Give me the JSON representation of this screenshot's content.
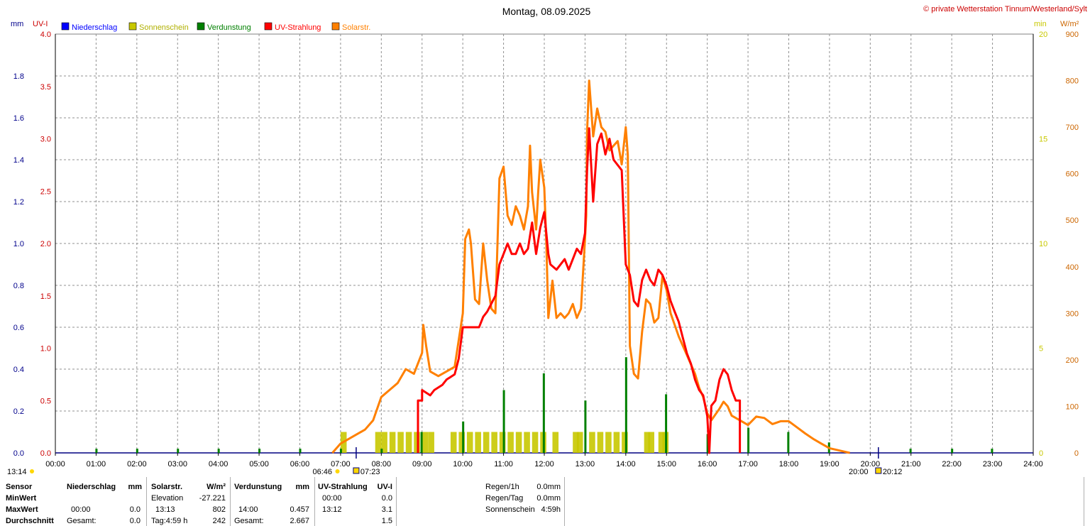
{
  "title": "Montag, 08.09.2025",
  "copyright": "© private Wetterstation Tinnum/Westerland/Sylt",
  "units": {
    "left1": "mm",
    "left2": "UV-I",
    "right1": "min",
    "right2": "W/m²"
  },
  "legend": [
    {
      "label": "Niederschlag",
      "color": "#0000ff"
    },
    {
      "label": "Sonnenschein",
      "color": "#c8c800"
    },
    {
      "label": "Verdunstung",
      "color": "#008000"
    },
    {
      "label": "UV-Strahlung",
      "color": "#ff0000"
    },
    {
      "label": "Solarstr.",
      "color": "#ff8000"
    }
  ],
  "colors": {
    "axis_mm": "#00008b",
    "axis_uv": "#cc0000",
    "axis_min": "#c8c800",
    "axis_wm2": "#cc6600",
    "grid": "#808080"
  },
  "sun": {
    "morning_twilight": "06:46",
    "sunrise": "07:23",
    "evening_twilight_left": "20:00",
    "sunset": "20:12",
    "current_time": "13:14"
  },
  "chart_data": {
    "type": "line",
    "x_label_ticks": [
      "00:00",
      "01:00",
      "02:00",
      "03:00",
      "04:00",
      "05:00",
      "06:00",
      "07:00",
      "08:00",
      "09:00",
      "10:00",
      "11:00",
      "12:00",
      "13:00",
      "14:00",
      "15:00",
      "16:00",
      "17:00",
      "18:00",
      "19:00",
      "20:00",
      "21:00",
      "22:00",
      "23:00",
      "24:00"
    ],
    "axes": {
      "mm": {
        "range": [
          0,
          2.0
        ],
        "ticks": [
          "0.0",
          "0.2",
          "0.4",
          "0.6",
          "0.8",
          "1.0",
          "1.2",
          "1.4",
          "1.6",
          "1.8"
        ]
      },
      "uv": {
        "range": [
          0,
          4.0
        ],
        "ticks": [
          "0.0",
          "0.5",
          "1.0",
          "1.5",
          "2.0",
          "2.5",
          "3.0",
          "3.5",
          "4.0"
        ]
      },
      "min": {
        "range": [
          0,
          20
        ],
        "ticks": [
          "0",
          "5",
          "10",
          "15",
          "20"
        ]
      },
      "wm2": {
        "range": [
          0,
          900
        ],
        "ticks": [
          "0",
          "100",
          "200",
          "300",
          "400",
          "500",
          "600",
          "700",
          "800",
          "900"
        ]
      }
    },
    "series": [
      {
        "name": "Solarstr.",
        "axis": "wm2",
        "color": "#ff8000",
        "points": [
          [
            6.8,
            0
          ],
          [
            7.0,
            20
          ],
          [
            7.3,
            35
          ],
          [
            7.6,
            50
          ],
          [
            7.8,
            70
          ],
          [
            8.0,
            120
          ],
          [
            8.2,
            135
          ],
          [
            8.4,
            150
          ],
          [
            8.6,
            180
          ],
          [
            8.8,
            170
          ],
          [
            9.0,
            215
          ],
          [
            9.03,
            275
          ],
          [
            9.1,
            230
          ],
          [
            9.2,
            175
          ],
          [
            9.4,
            165
          ],
          [
            9.6,
            175
          ],
          [
            9.8,
            185
          ],
          [
            10.0,
            300
          ],
          [
            10.06,
            460
          ],
          [
            10.15,
            480
          ],
          [
            10.2,
            450
          ],
          [
            10.3,
            330
          ],
          [
            10.4,
            320
          ],
          [
            10.5,
            450
          ],
          [
            10.6,
            370
          ],
          [
            10.7,
            310
          ],
          [
            10.8,
            300
          ],
          [
            10.9,
            590
          ],
          [
            11.0,
            615
          ],
          [
            11.1,
            510
          ],
          [
            11.2,
            490
          ],
          [
            11.3,
            530
          ],
          [
            11.4,
            510
          ],
          [
            11.5,
            480
          ],
          [
            11.6,
            530
          ],
          [
            11.65,
            660
          ],
          [
            11.7,
            560
          ],
          [
            11.8,
            480
          ],
          [
            11.85,
            560
          ],
          [
            11.9,
            630
          ],
          [
            12.0,
            570
          ],
          [
            12.05,
            450
          ],
          [
            12.1,
            290
          ],
          [
            12.2,
            370
          ],
          [
            12.3,
            290
          ],
          [
            12.4,
            300
          ],
          [
            12.5,
            290
          ],
          [
            12.6,
            300
          ],
          [
            12.7,
            320
          ],
          [
            12.8,
            290
          ],
          [
            12.9,
            310
          ],
          [
            13.0,
            460
          ],
          [
            13.03,
            510
          ],
          [
            13.05,
            690
          ],
          [
            13.1,
            800
          ],
          [
            13.2,
            680
          ],
          [
            13.3,
            740
          ],
          [
            13.4,
            700
          ],
          [
            13.5,
            690
          ],
          [
            13.6,
            650
          ],
          [
            13.7,
            660
          ],
          [
            13.8,
            670
          ],
          [
            13.9,
            620
          ],
          [
            14.0,
            700
          ],
          [
            14.05,
            640
          ],
          [
            14.1,
            230
          ],
          [
            14.2,
            170
          ],
          [
            14.3,
            160
          ],
          [
            14.4,
            260
          ],
          [
            14.5,
            330
          ],
          [
            14.6,
            320
          ],
          [
            14.7,
            280
          ],
          [
            14.8,
            290
          ],
          [
            14.9,
            380
          ],
          [
            15.0,
            350
          ],
          [
            15.1,
            300
          ],
          [
            15.3,
            250
          ],
          [
            15.5,
            210
          ],
          [
            15.7,
            170
          ],
          [
            15.8,
            140
          ],
          [
            15.9,
            120
          ],
          [
            16.0,
            85
          ],
          [
            16.1,
            70
          ],
          [
            16.3,
            95
          ],
          [
            16.4,
            110
          ],
          [
            16.5,
            100
          ],
          [
            16.6,
            80
          ],
          [
            16.8,
            70
          ],
          [
            17.0,
            60
          ],
          [
            17.2,
            78
          ],
          [
            17.4,
            75
          ],
          [
            17.6,
            62
          ],
          [
            17.8,
            68
          ],
          [
            18.0,
            68
          ],
          [
            18.2,
            55
          ],
          [
            18.4,
            42
          ],
          [
            18.6,
            30
          ],
          [
            18.8,
            20
          ],
          [
            19.0,
            10
          ],
          [
            19.2,
            6
          ],
          [
            19.5,
            0
          ]
        ]
      },
      {
        "name": "UV-Strahlung",
        "axis": "uv",
        "color": "#ff0000",
        "points": [
          [
            8.9,
            0
          ],
          [
            8.9,
            0.5
          ],
          [
            9.0,
            0.5
          ],
          [
            9.0,
            0.6
          ],
          [
            9.2,
            0.55
          ],
          [
            9.3,
            0.6
          ],
          [
            9.5,
            0.65
          ],
          [
            9.6,
            0.7
          ],
          [
            9.8,
            0.75
          ],
          [
            9.9,
            0.9
          ],
          [
            10.0,
            1.2
          ],
          [
            10.2,
            1.2
          ],
          [
            10.4,
            1.2
          ],
          [
            10.5,
            1.3
          ],
          [
            10.6,
            1.35
          ],
          [
            10.8,
            1.5
          ],
          [
            10.9,
            1.8
          ],
          [
            11.0,
            1.9
          ],
          [
            11.1,
            2.0
          ],
          [
            11.2,
            1.9
          ],
          [
            11.3,
            1.9
          ],
          [
            11.4,
            2.0
          ],
          [
            11.5,
            1.9
          ],
          [
            11.6,
            1.95
          ],
          [
            11.7,
            2.2
          ],
          [
            11.8,
            1.9
          ],
          [
            11.9,
            2.15
          ],
          [
            12.0,
            2.3
          ],
          [
            12.1,
            1.9
          ],
          [
            12.15,
            1.8
          ],
          [
            12.3,
            1.75
          ],
          [
            12.5,
            1.85
          ],
          [
            12.6,
            1.75
          ],
          [
            12.8,
            1.95
          ],
          [
            12.9,
            1.9
          ],
          [
            13.0,
            2.1
          ],
          [
            13.05,
            2.7
          ],
          [
            13.1,
            3.1
          ],
          [
            13.2,
            2.4
          ],
          [
            13.3,
            2.95
          ],
          [
            13.4,
            3.05
          ],
          [
            13.5,
            2.85
          ],
          [
            13.6,
            3.0
          ],
          [
            13.7,
            2.8
          ],
          [
            13.8,
            2.75
          ],
          [
            13.9,
            2.7
          ],
          [
            14.0,
            1.8
          ],
          [
            14.1,
            1.7
          ],
          [
            14.2,
            1.45
          ],
          [
            14.3,
            1.4
          ],
          [
            14.4,
            1.65
          ],
          [
            14.5,
            1.75
          ],
          [
            14.6,
            1.65
          ],
          [
            14.7,
            1.6
          ],
          [
            14.8,
            1.75
          ],
          [
            14.9,
            1.7
          ],
          [
            15.0,
            1.6
          ],
          [
            15.1,
            1.45
          ],
          [
            15.2,
            1.35
          ],
          [
            15.3,
            1.25
          ],
          [
            15.4,
            1.1
          ],
          [
            15.5,
            0.95
          ],
          [
            15.6,
            0.85
          ],
          [
            15.7,
            0.7
          ],
          [
            15.8,
            0.6
          ],
          [
            15.9,
            0.55
          ],
          [
            16.0,
            0.35
          ],
          [
            16.05,
            0
          ],
          [
            16.1,
            0.45
          ],
          [
            16.2,
            0.5
          ],
          [
            16.3,
            0.7
          ],
          [
            16.4,
            0.8
          ],
          [
            16.5,
            0.75
          ],
          [
            16.6,
            0.6
          ],
          [
            16.7,
            0.5
          ],
          [
            16.8,
            0.5
          ],
          [
            16.8,
            0
          ]
        ]
      },
      {
        "name": "Sonnenschein",
        "axis": "min",
        "color": "#c8c800",
        "bars": [
          [
            7.0,
            1
          ],
          [
            7.85,
            1
          ],
          [
            8.0,
            1
          ],
          [
            8.2,
            1
          ],
          [
            8.4,
            1
          ],
          [
            8.6,
            1
          ],
          [
            8.8,
            1
          ],
          [
            9.0,
            1
          ],
          [
            9.15,
            1
          ],
          [
            9.7,
            1
          ],
          [
            9.9,
            1
          ],
          [
            10.1,
            1
          ],
          [
            10.3,
            1
          ],
          [
            10.5,
            1
          ],
          [
            10.7,
            1
          ],
          [
            10.9,
            1
          ],
          [
            11.1,
            1
          ],
          [
            11.3,
            1
          ],
          [
            11.5,
            1
          ],
          [
            11.7,
            1
          ],
          [
            11.9,
            1
          ],
          [
            12.2,
            1
          ],
          [
            12.7,
            1
          ],
          [
            12.8,
            1
          ],
          [
            13.1,
            1
          ],
          [
            13.3,
            1
          ],
          [
            13.5,
            1
          ],
          [
            13.7,
            1
          ],
          [
            13.9,
            1
          ],
          [
            14.45,
            1
          ],
          [
            14.55,
            1
          ],
          [
            14.8,
            1
          ],
          [
            14.9,
            1
          ]
        ]
      },
      {
        "name": "Verdunstung",
        "axis": "mm",
        "color": "#008000",
        "bars": [
          [
            1.0,
            0.02
          ],
          [
            2.0,
            0.02
          ],
          [
            3.0,
            0.02
          ],
          [
            4.0,
            0.02
          ],
          [
            5.0,
            0.02
          ],
          [
            6.0,
            0.02
          ],
          [
            7.0,
            0.02
          ],
          [
            8.0,
            0.02
          ],
          [
            8.98,
            0.1
          ],
          [
            10.0,
            0.15
          ],
          [
            11.0,
            0.3
          ],
          [
            11.98,
            0.38
          ],
          [
            13.0,
            0.25
          ],
          [
            14.0,
            0.457
          ],
          [
            14.98,
            0.28
          ],
          [
            16.0,
            0.09
          ],
          [
            17.0,
            0.12
          ],
          [
            17.98,
            0.1
          ],
          [
            18.98,
            0.05
          ],
          [
            20.98,
            0.02
          ],
          [
            22.0,
            0.02
          ],
          [
            22.98,
            0.02
          ]
        ]
      },
      {
        "name": "Niederschlag",
        "axis": "mm",
        "color": "#0000ff",
        "values": []
      }
    ]
  },
  "stats": {
    "headers": [
      "Sensor",
      "Niederschlag",
      "mm",
      "Solarstr.",
      "W/m²",
      "Verdunstung",
      "mm",
      "UV-Strahlung",
      "UV-I"
    ],
    "rows": [
      {
        "label": "MinWert",
        "nd_time": "",
        "nd_val": "",
        "sol_time": "Elevation",
        "sol_val": "-27.221",
        "vd_time": "",
        "vd_val": "",
        "uv_time": "00:00",
        "uv_val": "0.0"
      },
      {
        "label": "MaxWert",
        "nd_time": "00:00",
        "nd_val": "0.0",
        "sol_time": "13:13",
        "sol_val": "802",
        "vd_time": "14:00",
        "vd_val": "0.457",
        "uv_time": "13:12",
        "uv_val": "3.1"
      },
      {
        "label": "Durchschnitt",
        "nd_time": "Gesamt:",
        "nd_val": "0.0",
        "sol_time": "Tag:4:59 h",
        "sol_val": "242",
        "vd_time": "Gesamt:",
        "vd_val": "2.667",
        "uv_time": "",
        "uv_val": "1.5"
      }
    ],
    "extra": [
      {
        "label": "Regen/1h",
        "value": "0.0mm"
      },
      {
        "label": "Regen/Tag",
        "value": "0.0mm"
      },
      {
        "label": "Sonnenschein",
        "value": "4:59h"
      }
    ]
  }
}
